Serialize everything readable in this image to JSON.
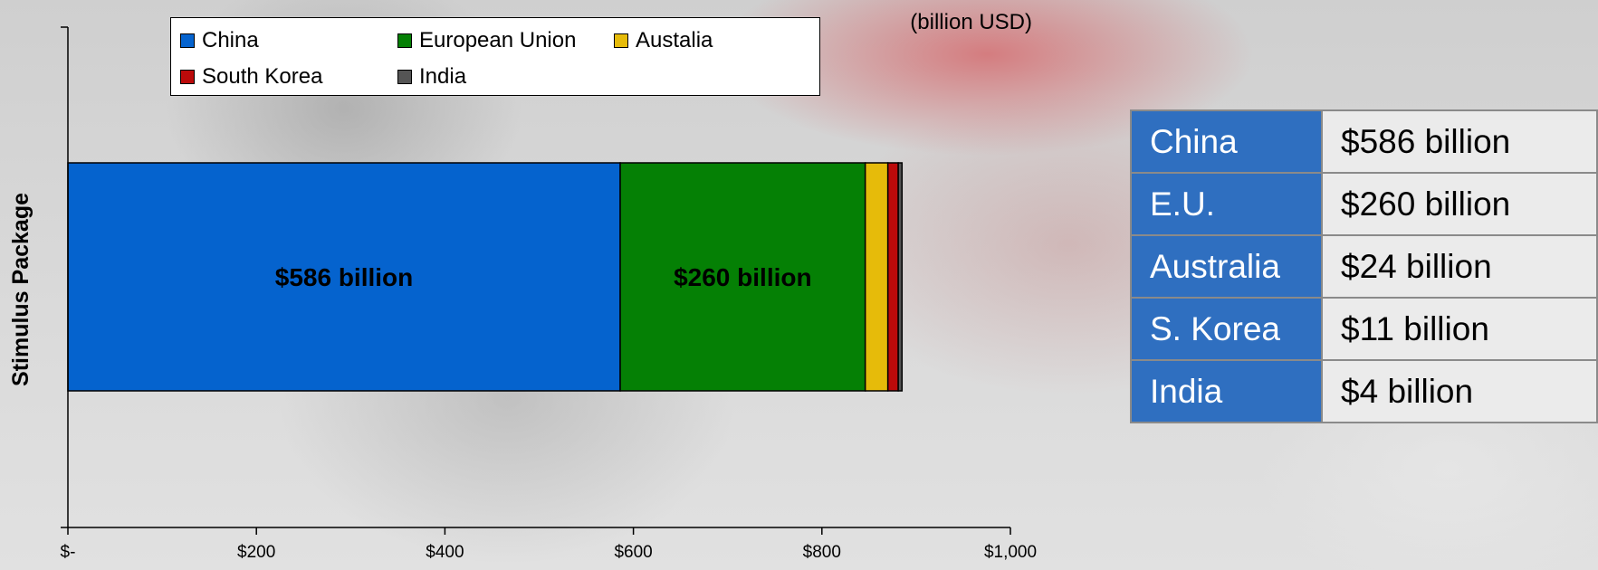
{
  "chart_data": {
    "type": "bar",
    "orientation": "horizontal",
    "stacked": true,
    "title": "",
    "unit_label": "(billion USD)",
    "ylabel": "Stimulus Package",
    "xlim": [
      0,
      1000
    ],
    "x_ticks": [
      "$-",
      "$200",
      "$400",
      "$600",
      "$800",
      "$1,000"
    ],
    "x_tick_values": [
      0,
      200,
      400,
      600,
      800,
      1000
    ],
    "grid": false,
    "legend_position": "top",
    "series": [
      {
        "name": "China",
        "value": 586,
        "color": "#0563ce",
        "data_label": "$586 billion"
      },
      {
        "name": "European Union",
        "value": 260,
        "color": "#058005",
        "data_label": "$260 billion"
      },
      {
        "name": "Austalia",
        "value": 24,
        "color": "#e6bb0a",
        "data_label": ""
      },
      {
        "name": "South Korea",
        "value": 11,
        "color": "#bb0a0a",
        "data_label": ""
      },
      {
        "name": "India",
        "value": 4,
        "color": "#555555",
        "data_label": ""
      }
    ]
  },
  "legend": {
    "items": [
      {
        "label": "China",
        "color": "#0563ce"
      },
      {
        "label": "European Union",
        "color": "#058005"
      },
      {
        "label": "Austalia",
        "color": "#e6bb0a"
      },
      {
        "label": "South Korea",
        "color": "#bb0a0a"
      },
      {
        "label": "India",
        "color": "#555555"
      }
    ]
  },
  "table": {
    "rows": [
      {
        "country": "China",
        "value": "$586 billion"
      },
      {
        "country": "E.U.",
        "value": "$260 billion"
      },
      {
        "country": "Australia",
        "value": "$24 billion"
      },
      {
        "country": "S. Korea",
        "value": "$11 billion"
      },
      {
        "country": "India",
        "value": "$4 billion"
      }
    ]
  },
  "colors": {
    "table_header_bg": "#2f6fc0",
    "table_value_bg": "#ebebeb"
  }
}
